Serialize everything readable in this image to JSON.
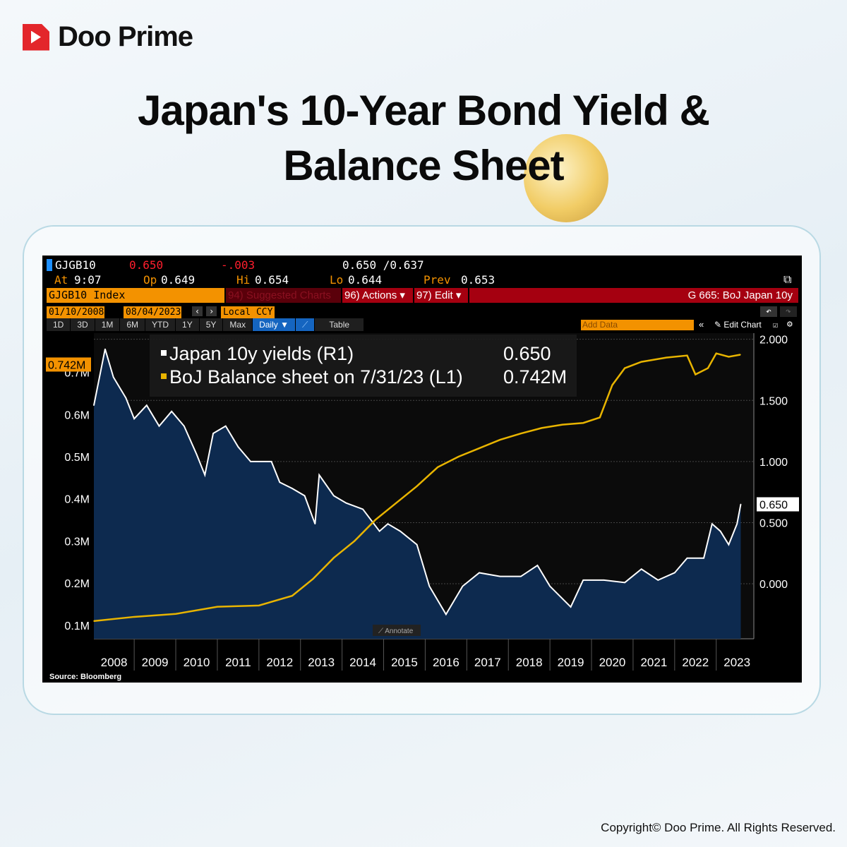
{
  "brand": {
    "name": "Doo Prime",
    "copyright": "Copyright© Doo Prime. All Rights Reserved."
  },
  "title": {
    "line1": "Japan's 10-Year Bond Yield &",
    "line2": "Balance Sheet"
  },
  "terminal": {
    "ticker": "GJGB10",
    "last": "0.650",
    "change": "-.003",
    "bid_ask": "0.650 /0.637",
    "at_label": "At",
    "at": "9:07",
    "op_label": "Op",
    "op": "0.649",
    "hi_label": "Hi",
    "hi": "0.654",
    "lo_label": "Lo",
    "lo": "0.644",
    "prev_label": "Prev",
    "prev": "0.653",
    "security": "GJGB10 Index",
    "suggested": "94) Suggested Charts",
    "actions": "96) Actions ▾",
    "edit": "97) Edit ▾",
    "chart_name": "G 665: BoJ Japan 10y",
    "start_date": "01/10/2008",
    "end_date": "08/04/2023",
    "currency": "Local CCY",
    "periods": [
      "1D",
      "3D",
      "1M",
      "6M",
      "YTD",
      "1Y",
      "5Y",
      "Max"
    ],
    "frequency": "Daily ▼",
    "table": "Table",
    "add_data": "Add Data",
    "edit_chart": "Edit Chart",
    "annotate": "Annotate",
    "source": "Source: Bloomberg",
    "colors": {
      "orange": "#f39200",
      "red_bar": "#a50010",
      "yield_line": "#ffffff",
      "bs_line": "#e8b400",
      "area": "#0d2a4f"
    }
  },
  "chart_data": {
    "type": "line",
    "x_ticks": [
      "2008",
      "2009",
      "2010",
      "2011",
      "2012",
      "2013",
      "2014",
      "2015",
      "2016",
      "2017",
      "2018",
      "2019",
      "2020",
      "2021",
      "2022",
      "2023"
    ],
    "right_axis": {
      "ticks": [
        "2.000",
        "1.500",
        "1.000",
        "0.500",
        "0.000"
      ],
      "range": [
        -0.45,
        2.05
      ]
    },
    "left_axis": {
      "ticks": [
        "0.7M",
        "0.6M",
        "0.5M",
        "0.4M",
        "0.3M",
        "0.2M",
        "0.1M"
      ],
      "range": [
        0.068,
        0.793
      ]
    },
    "grid": true,
    "legend": "top-left",
    "legend_entries": [
      {
        "label": "Japan 10y yields (R1)",
        "value": "0.650"
      },
      {
        "label": "BoJ Balance sheet on 7/31/23 (L1)",
        "value": "0.742M"
      }
    ],
    "last_labels": {
      "right": "0.650",
      "left": "0.742M"
    },
    "series": [
      {
        "name": "Japan 10y yields (R1)",
        "axis": "right",
        "x": [
          2008.03,
          2008.3,
          2008.5,
          2008.8,
          2009.0,
          2009.3,
          2009.6,
          2009.9,
          2010.2,
          2010.5,
          2010.7,
          2010.9,
          2011.2,
          2011.5,
          2011.8,
          2012.0,
          2012.3,
          2012.5,
          2012.8,
          2013.1,
          2013.35,
          2013.45,
          2013.8,
          2014.1,
          2014.5,
          2014.9,
          2015.1,
          2015.4,
          2015.8,
          2016.1,
          2016.5,
          2016.9,
          2017.3,
          2017.8,
          2018.3,
          2018.7,
          2019.0,
          2019.5,
          2019.8,
          2020.3,
          2020.8,
          2021.2,
          2021.6,
          2022.0,
          2022.3,
          2022.7,
          2022.9,
          2023.1,
          2023.3,
          2023.5,
          2023.59
        ],
        "y": [
          1.46,
          1.92,
          1.69,
          1.52,
          1.35,
          1.46,
          1.29,
          1.41,
          1.29,
          1.06,
          0.89,
          1.23,
          1.29,
          1.12,
          1.0,
          1.0,
          1.0,
          0.83,
          0.78,
          0.72,
          0.49,
          0.89,
          0.72,
          0.66,
          0.61,
          0.43,
          0.49,
          0.43,
          0.32,
          -0.02,
          -0.25,
          -0.02,
          0.09,
          0.06,
          0.06,
          0.15,
          -0.02,
          -0.19,
          0.03,
          0.03,
          0.01,
          0.12,
          0.03,
          0.09,
          0.21,
          0.21,
          0.49,
          0.43,
          0.32,
          0.49,
          0.65
        ]
      },
      {
        "name": "BoJ Balance sheet (L1)",
        "axis": "left",
        "x": [
          2008.03,
          2009,
          2010,
          2011,
          2012,
          2012.8,
          2013.3,
          2013.8,
          2014.3,
          2014.8,
          2015.3,
          2015.8,
          2016.3,
          2016.8,
          2017.3,
          2017.8,
          2018.3,
          2018.8,
          2019.3,
          2019.8,
          2020.2,
          2020.5,
          2020.8,
          2021.2,
          2021.8,
          2022.3,
          2022.5,
          2022.8,
          2023.0,
          2023.3,
          2023.58
        ],
        "y": [
          0.11,
          0.12,
          0.127,
          0.144,
          0.147,
          0.17,
          0.21,
          0.26,
          0.3,
          0.35,
          0.39,
          0.43,
          0.475,
          0.5,
          0.52,
          0.54,
          0.555,
          0.568,
          0.576,
          0.58,
          0.593,
          0.67,
          0.71,
          0.725,
          0.735,
          0.74,
          0.695,
          0.71,
          0.745,
          0.737,
          0.742
        ]
      }
    ]
  }
}
